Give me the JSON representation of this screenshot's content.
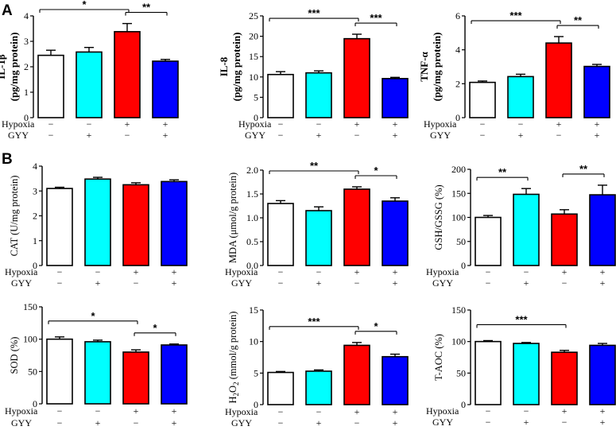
{
  "panel_letters": [
    "A",
    "B"
  ],
  "row_labels": {
    "hypoxia": "Hypoxia",
    "gyy": "GYY"
  },
  "conditions": {
    "hypoxia": [
      "−",
      "−",
      "+",
      "+"
    ],
    "gyy": [
      "−",
      "+",
      "−",
      "+"
    ]
  },
  "colors": {
    "bars": [
      "#ffffff",
      "#00ffff",
      "#ff0000",
      "#0000ff"
    ],
    "stroke": "#000000"
  },
  "chart_data": [
    {
      "type": "bar",
      "id": "il1b",
      "ylabel_lines": [
        "IL-1β",
        "(pg/mg protein)"
      ],
      "ylabel_bold": true,
      "ylim": [
        0,
        4
      ],
      "yticks": [
        0,
        1,
        2,
        3,
        4
      ],
      "tick_labels": [
        "0",
        "1",
        "2",
        "3",
        "4"
      ],
      "values": [
        2.45,
        2.58,
        3.38,
        2.22
      ],
      "errors": [
        0.2,
        0.18,
        0.32,
        0.07
      ],
      "significance": [
        {
          "from": 0,
          "to": 2,
          "label": "*"
        },
        {
          "from": 2,
          "to": 3,
          "label": "**"
        }
      ]
    },
    {
      "type": "bar",
      "id": "il8",
      "ylabel_lines": [
        "IL-8",
        "(pg/mg protein)"
      ],
      "ylabel_bold": true,
      "ylim": [
        0,
        25
      ],
      "yticks": [
        0,
        5,
        10,
        15,
        20,
        25
      ],
      "tick_labels": [
        "0",
        "5",
        "10",
        "15",
        "20",
        "25"
      ],
      "values": [
        10.6,
        11.0,
        19.4,
        9.6
      ],
      "errors": [
        0.7,
        0.5,
        1.1,
        0.3
      ],
      "significance": [
        {
          "from": 0,
          "to": 2,
          "label": "***"
        },
        {
          "from": 2,
          "to": 3,
          "label": "***"
        }
      ]
    },
    {
      "type": "bar",
      "id": "tnfa",
      "ylabel_lines": [
        "TNF-α",
        "(pg/mg protein)"
      ],
      "ylabel_bold": true,
      "ylim": [
        0,
        6
      ],
      "yticks": [
        0,
        2,
        4,
        6
      ],
      "tick_labels": [
        "0",
        "2",
        "4",
        "6"
      ],
      "values": [
        2.08,
        2.42,
        4.4,
        3.02
      ],
      "errors": [
        0.08,
        0.14,
        0.38,
        0.12
      ],
      "significance": [
        {
          "from": 0,
          "to": 2,
          "label": "***"
        },
        {
          "from": 2,
          "to": 3,
          "label": "**"
        }
      ]
    },
    {
      "type": "bar",
      "id": "cat",
      "ylabel_lines": [
        "CAT (U/mg protein)"
      ],
      "ylabel_bold": false,
      "ylim": [
        0,
        4
      ],
      "yticks": [
        0,
        1,
        2,
        3,
        4
      ],
      "tick_labels": [
        "0",
        "1",
        "2",
        "3",
        "4"
      ],
      "values": [
        3.1,
        3.48,
        3.25,
        3.38
      ],
      "errors": [
        0.05,
        0.07,
        0.08,
        0.07
      ],
      "significance": []
    },
    {
      "type": "bar",
      "id": "mda",
      "ylabel_lines": [
        "MDA (μmol/g protein)"
      ],
      "ylabel_bold": false,
      "ylim": [
        0,
        2.0
      ],
      "yticks": [
        0,
        0.5,
        1.0,
        1.5,
        2.0
      ],
      "tick_labels": [
        "0.0",
        "0.5",
        "1.0",
        "1.5",
        "2.0"
      ],
      "values": [
        1.3,
        1.15,
        1.6,
        1.35
      ],
      "errors": [
        0.06,
        0.08,
        0.05,
        0.07
      ],
      "significance": [
        {
          "from": 0,
          "to": 2,
          "label": "**"
        },
        {
          "from": 2,
          "to": 3,
          "label": "*"
        }
      ]
    },
    {
      "type": "bar",
      "id": "gsh",
      "ylabel_lines": [
        "GSH/GSSG (%)"
      ],
      "ylabel_bold": false,
      "ylim": [
        0,
        200
      ],
      "yticks": [
        0,
        50,
        100,
        150,
        200
      ],
      "tick_labels": [
        "0",
        "50",
        "100",
        "150",
        "200"
      ],
      "values": [
        100,
        148,
        107,
        147
      ],
      "errors": [
        4,
        12,
        9,
        20
      ],
      "significance": [
        {
          "from": 0,
          "to": 1,
          "label": "**"
        },
        {
          "from": 2,
          "to": 3,
          "label": "**"
        }
      ]
    },
    {
      "type": "bar",
      "id": "sod",
      "ylabel_lines": [
        "SOD (%)"
      ],
      "ylabel_bold": false,
      "ylim": [
        0,
        150
      ],
      "yticks": [
        0,
        50,
        100,
        150
      ],
      "tick_labels": [
        "0",
        "50",
        "100",
        "150"
      ],
      "values": [
        100,
        96,
        80,
        91
      ],
      "errors": [
        3.5,
        2.5,
        3.5,
        1.5
      ],
      "significance": [
        {
          "from": 0,
          "to": 2,
          "label": "*"
        },
        {
          "from": 2,
          "to": 3,
          "label": "*"
        }
      ]
    },
    {
      "type": "bar",
      "id": "h2o2",
      "ylabel_lines": [
        "H2O2 (mmol/g protein)"
      ],
      "ylabel_bold": false,
      "ylim": [
        0,
        15
      ],
      "yticks": [
        0,
        5,
        10,
        15
      ],
      "tick_labels": [
        "0",
        "5",
        "10",
        "15"
      ],
      "values": [
        5.1,
        5.3,
        9.4,
        7.6
      ],
      "errors": [
        0.15,
        0.2,
        0.45,
        0.4
      ],
      "significance": [
        {
          "from": 0,
          "to": 2,
          "label": "***"
        },
        {
          "from": 2,
          "to": 3,
          "label": "*"
        }
      ]
    },
    {
      "type": "bar",
      "id": "taoc",
      "ylabel_lines": [
        "T-AOC (%)"
      ],
      "ylabel_bold": false,
      "ylim": [
        0,
        150
      ],
      "yticks": [
        0,
        50,
        100,
        150
      ],
      "tick_labels": [
        "0",
        "50",
        "100",
        "150"
      ],
      "values": [
        100,
        97,
        83,
        94
      ],
      "errors": [
        1.5,
        1.5,
        3,
        3
      ],
      "significance": [
        {
          "from": 0,
          "to": 2,
          "label": "***"
        }
      ]
    }
  ]
}
